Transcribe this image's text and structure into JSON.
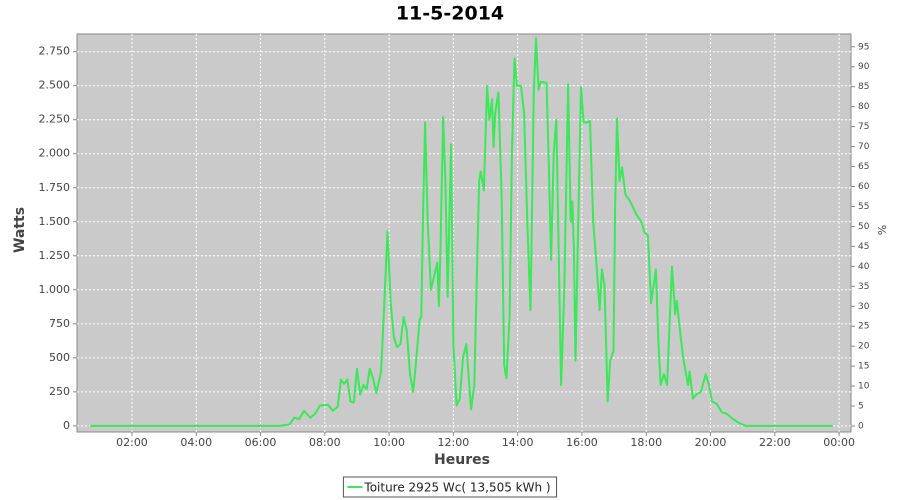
{
  "chart_data": {
    "type": "line",
    "title": "11-5-2014",
    "x_label": "Heures",
    "y_label": "Watts",
    "y2_label": "%",
    "x": [
      0.7,
      6.6,
      6.9,
      7.05,
      7.2,
      7.35,
      7.55,
      7.7,
      7.85,
      8.1,
      8.25,
      8.4,
      8.5,
      8.6,
      8.7,
      8.8,
      8.9,
      9.0,
      9.1,
      9.2,
      9.3,
      9.4,
      9.5,
      9.6,
      9.75,
      9.85,
      9.95,
      10.05,
      10.15,
      10.25,
      10.35,
      10.45,
      10.55,
      10.65,
      10.75,
      10.85,
      10.95,
      11.0,
      11.05,
      11.12,
      11.2,
      11.3,
      11.4,
      11.5,
      11.55,
      11.6,
      11.68,
      11.75,
      11.82,
      11.93,
      12.0,
      12.1,
      12.2,
      12.3,
      12.4,
      12.5,
      12.55,
      12.65,
      12.8,
      12.85,
      12.95,
      13.05,
      13.12,
      13.2,
      13.25,
      13.3,
      13.4,
      13.5,
      13.58,
      13.65,
      13.75,
      13.82,
      13.9,
      13.98,
      14.1,
      14.2,
      14.3,
      14.4,
      14.5,
      14.57,
      14.65,
      14.72,
      14.9,
      14.98,
      15.04,
      15.12,
      15.2,
      15.35,
      15.45,
      15.57,
      15.65,
      15.7,
      15.75,
      15.8,
      15.9,
      15.97,
      16.05,
      16.15,
      16.25,
      16.35,
      16.45,
      16.55,
      16.62,
      16.7,
      16.8,
      16.88,
      16.98,
      17.03,
      17.09,
      17.17,
      17.25,
      17.35,
      17.5,
      17.7,
      17.85,
      17.95,
      18.05,
      18.15,
      18.3,
      18.38,
      18.45,
      18.55,
      18.65,
      18.75,
      18.8,
      18.9,
      18.95,
      19.05,
      19.15,
      19.3,
      19.35,
      19.45,
      19.55,
      19.7,
      19.85,
      19.95,
      20.05,
      20.2,
      20.35,
      20.5,
      20.7,
      20.9,
      21.1,
      23.8
    ],
    "series": [
      {
        "name": "Toiture 2925 Wc( 13,505 kWh )",
        "color": "#3ae85a",
        "values": [
          0,
          0,
          10,
          60,
          50,
          110,
          60,
          90,
          150,
          155,
          110,
          140,
          340,
          310,
          340,
          180,
          170,
          420,
          230,
          300,
          270,
          420,
          350,
          240,
          400,
          900,
          1430,
          900,
          650,
          580,
          600,
          800,
          700,
          380,
          250,
          500,
          780,
          800,
          1500,
          2230,
          1500,
          1000,
          1100,
          1200,
          880,
          1300,
          2270,
          1800,
          950,
          2070,
          600,
          150,
          200,
          500,
          600,
          280,
          120,
          300,
          1800,
          1870,
          1730,
          2500,
          2250,
          2400,
          2050,
          2300,
          2450,
          1700,
          450,
          350,
          800,
          2000,
          2700,
          2500,
          2500,
          2300,
          1500,
          850,
          2450,
          2850,
          2470,
          2530,
          2520,
          1800,
          1220,
          2000,
          2250,
          300,
          1000,
          2510,
          1500,
          1650,
          1300,
          480,
          1700,
          2490,
          2230,
          2230,
          2240,
          1500,
          1200,
          850,
          1150,
          1030,
          180,
          480,
          550,
          1600,
          2260,
          1800,
          1900,
          1700,
          1650,
          1550,
          1500,
          1420,
          1400,
          900,
          1150,
          600,
          300,
          380,
          300,
          900,
          1170,
          820,
          920,
          700,
          500,
          300,
          400,
          200,
          230,
          250,
          380,
          300,
          180,
          160,
          100,
          90,
          50,
          20,
          0,
          0
        ]
      }
    ],
    "xlim": [
      0.29,
      24.37
    ],
    "xticks": [
      {
        "value": 2,
        "label": "02:00"
      },
      {
        "value": 4,
        "label": "04:00"
      },
      {
        "value": 6,
        "label": "06:00"
      },
      {
        "value": 8,
        "label": "08:00"
      },
      {
        "value": 10,
        "label": "10:00"
      },
      {
        "value": 12,
        "label": "12:00"
      },
      {
        "value": 14,
        "label": "14:00"
      },
      {
        "value": 16,
        "label": "16:00"
      },
      {
        "value": 18,
        "label": "18:00"
      },
      {
        "value": 20,
        "label": "20:00"
      },
      {
        "value": 22,
        "label": "22:00"
      },
      {
        "value": 24,
        "label": "00:00"
      }
    ],
    "ylim": [
      -45,
      2880
    ],
    "yticks": [
      0,
      250,
      500,
      750,
      {
        "value": 1000,
        "label": "1.000"
      },
      {
        "value": 1250,
        "label": "1.250"
      },
      {
        "value": 1500,
        "label": "1.500"
      },
      {
        "value": 1750,
        "label": "1.750"
      },
      {
        "value": 2000,
        "label": "2.000"
      },
      {
        "value": 2250,
        "label": "2.250"
      },
      {
        "value": 2500,
        "label": "2.500"
      },
      {
        "value": 2750,
        "label": "2.750"
      }
    ],
    "y2lim": [
      -1.5,
      98.2
    ],
    "y2ticks": [
      0,
      5,
      10,
      15,
      20,
      25,
      30,
      35,
      40,
      45,
      50,
      55,
      60,
      65,
      70,
      75,
      80,
      85,
      90,
      95
    ],
    "grid": true,
    "plot_background": "#cacaca",
    "legend": "bottom"
  }
}
